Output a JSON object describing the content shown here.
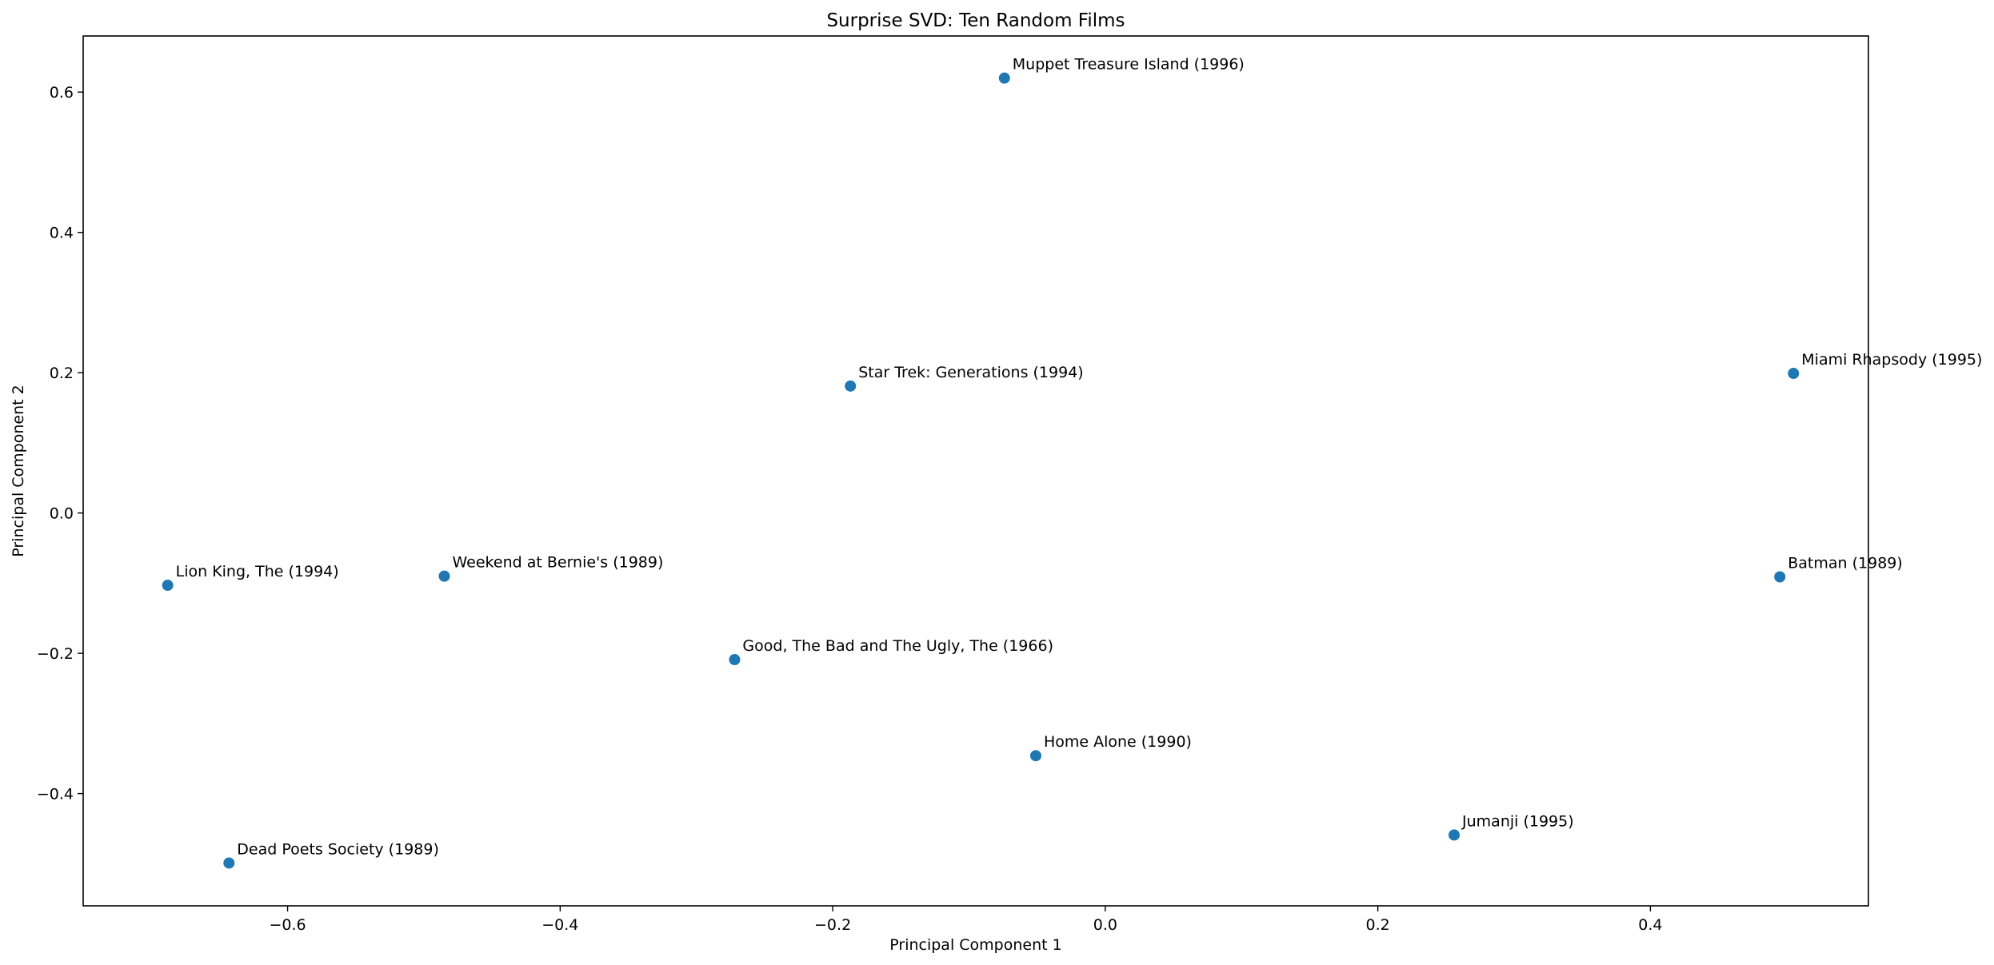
{
  "chart_data": {
    "type": "scatter",
    "title": "Surprise SVD: Ten Random Films",
    "xlabel": "Principal Component 1",
    "ylabel": "Principal Component 2",
    "xlim": [
      -0.75,
      0.56
    ],
    "ylim": [
      -0.56,
      0.68
    ],
    "xticks": [
      -0.6,
      -0.4,
      -0.2,
      0.0,
      0.2,
      0.4
    ],
    "xtick_labels": [
      "−0.6",
      "−0.4",
      "−0.2",
      "0.0",
      "0.2",
      "0.4"
    ],
    "yticks": [
      -0.4,
      -0.2,
      0.0,
      0.2,
      0.4,
      0.6
    ],
    "ytick_labels": [
      "−0.4",
      "−0.2",
      "0.0",
      "0.2",
      "0.4",
      "0.6"
    ],
    "grid": false,
    "marker_color": "#1f77b4",
    "points": [
      {
        "label": "Muppet Treasure Island (1996)",
        "x": -0.074,
        "y": 0.62
      },
      {
        "label": "Star Trek: Generations (1994)",
        "x": -0.187,
        "y": 0.181
      },
      {
        "label": "Miami Rhapsody (1995)",
        "x": 0.505,
        "y": 0.199
      },
      {
        "label": "Lion King, The (1994)",
        "x": -0.688,
        "y": -0.103
      },
      {
        "label": "Weekend at Bernie's (1989)",
        "x": -0.485,
        "y": -0.09
      },
      {
        "label": "Batman (1989)",
        "x": 0.495,
        "y": -0.091
      },
      {
        "label": "Good, The Bad and The Ugly, The (1966)",
        "x": -0.272,
        "y": -0.209
      },
      {
        "label": "Home Alone (1990)",
        "x": -0.051,
        "y": -0.346
      },
      {
        "label": "Jumanji (1995)",
        "x": 0.256,
        "y": -0.459
      },
      {
        "label": "Dead Poets Society (1989)",
        "x": -0.643,
        "y": -0.499
      }
    ]
  }
}
